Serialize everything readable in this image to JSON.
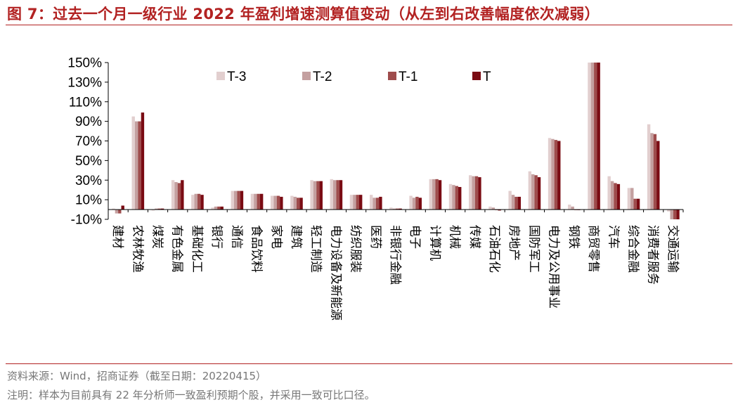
{
  "title": "图 7：过去一个月一级行业 2022 年盈利增速测算值变动（从左到右改善幅度依次减弱）",
  "source": "资料来源：Wind，招商证券（截至日期：20220415）",
  "note": "注明：样本为目前具有 22 年分析师一致盈利预期个股，并采用一致可比口径。",
  "chart_data": {
    "type": "bar",
    "ylim": [
      -10,
      150
    ],
    "yticks": [
      -10,
      10,
      30,
      50,
      70,
      90,
      110,
      130,
      150
    ],
    "ytick_labels": [
      "-10%",
      "10%",
      "30%",
      "50%",
      "70%",
      "90%",
      "110%",
      "130%",
      "150%"
    ],
    "legend_position": "top",
    "categories": [
      "建材",
      "农林牧渔",
      "煤炭",
      "有色金属",
      "基础化工",
      "银行",
      "通信",
      "食品饮料",
      "家电",
      "建筑",
      "轻工制造",
      "电力设备及新能源",
      "纺织服装",
      "医药",
      "非银行金融",
      "电子",
      "计算机",
      "机械",
      "传媒",
      "石油石化",
      "房地产",
      "国防军工",
      "电力及公用事业",
      "钢铁",
      "商贸零售",
      "汽车",
      "综合金融",
      "消费者服务",
      "交通运输"
    ],
    "series": [
      {
        "name": "T-3",
        "color": "#e2cfcf",
        "values": [
          1,
          95,
          -1,
          30,
          15,
          2,
          19,
          16,
          14,
          14,
          30,
          31,
          15,
          15,
          2,
          14,
          31,
          26,
          35,
          3,
          19,
          39,
          73,
          5,
          160,
          34,
          22,
          87,
          -2
        ]
      },
      {
        "name": "T-2",
        "color": "#c4a0a0",
        "values": [
          -4,
          90,
          1,
          28,
          16,
          3,
          19,
          16,
          14,
          13,
          29,
          30,
          15,
          12,
          1,
          12,
          31,
          25,
          34,
          2,
          15,
          36,
          72,
          3,
          160,
          29,
          22,
          78,
          -11
        ]
      },
      {
        "name": "T-1",
        "color": "#9e4c4c",
        "values": [
          -4,
          90,
          1,
          27,
          16,
          3,
          19,
          16,
          14,
          12,
          29,
          30,
          15,
          12,
          1,
          13,
          31,
          24,
          34,
          0,
          13,
          35,
          71,
          0,
          160,
          27,
          11,
          77,
          -11
        ]
      },
      {
        "name": "T",
        "color": "#7a0b13",
        "values": [
          4,
          99,
          1,
          30,
          15,
          3,
          19,
          16,
          13,
          12,
          29,
          30,
          15,
          13,
          1,
          12,
          30,
          23,
          33,
          -1,
          13,
          33,
          70,
          0,
          160,
          26,
          11,
          70,
          -11
        ]
      }
    ]
  }
}
